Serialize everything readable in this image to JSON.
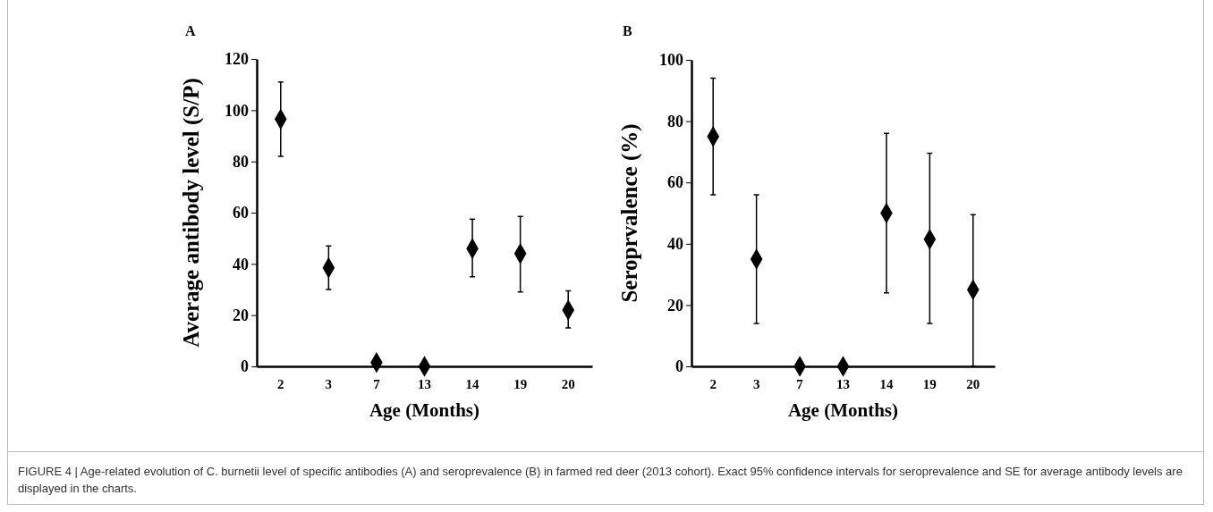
{
  "chart_data": [
    {
      "type": "scatter",
      "ylabel": "Average antibody level (S/P)",
      "xlabel": "Age (Months)",
      "categories": [
        "2",
        "3",
        "7",
        "13",
        "14",
        "19",
        "20"
      ],
      "series": [
        {
          "color": "#000000",
          "values": [
            96.5,
            38.5,
            1.5,
            0,
            46,
            44,
            22
          ],
          "errors": [
            [
              82,
              111
            ],
            [
              30,
              47
            ],
            null,
            null,
            [
              35,
              57.5
            ],
            [
              29,
              58.5
            ],
            [
              15,
              29.5
            ]
          ]
        }
      ],
      "ylim": [
        0,
        120
      ],
      "yticks": [
        0,
        20,
        40,
        60,
        80,
        100,
        120
      ],
      "marker": "diamond",
      "grid": false,
      "annotations": [
        "A",
        "FIGURE 4 | Age-related evolution of C. burnetii level of specific antibodies (A) and seroprevalence (B) in farmed red deer (2013 cohort). Exact 95% confidence intervals for seroprevalence and SE for average antibody levels are displayed in the charts."
      ]
    },
    {
      "type": "scatter",
      "ylabel": "Seroprvalence  (%)",
      "xlabel": "Age (Months)",
      "categories": [
        "2",
        "3",
        "7",
        "13",
        "14",
        "19",
        "20"
      ],
      "series": [
        {
          "color": "#000000",
          "values": [
            75,
            35,
            0,
            0,
            50,
            41.5,
            25
          ],
          "errors": [
            [
              56,
              94
            ],
            [
              14,
              56
            ],
            null,
            null,
            [
              24,
              76
            ],
            [
              14,
              69.5
            ],
            [
              0,
              49.5
            ]
          ]
        }
      ],
      "ylim": [
        0,
        100
      ],
      "yticks": [
        0,
        20,
        40,
        60,
        80,
        100
      ],
      "marker": "diamond",
      "grid": false,
      "annotations": [
        "B"
      ]
    }
  ]
}
